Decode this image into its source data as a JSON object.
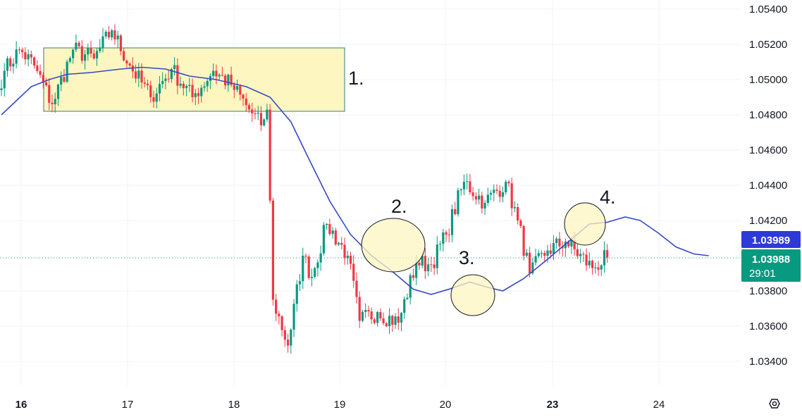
{
  "chart_data": {
    "type": "candlestick",
    "y_range": [
      1.0325,
      1.0545
    ],
    "y_ticks": [
      "1.05400",
      "1.05200",
      "1.05000",
      "1.04800",
      "1.04600",
      "1.04400",
      "1.04200",
      "1.03800",
      "1.03600",
      "1.03400"
    ],
    "x_ticks": [
      {
        "label": "16",
        "bold": true
      },
      {
        "label": "17",
        "bold": false
      },
      {
        "label": "18",
        "bold": false
      },
      {
        "label": "19",
        "bold": false
      },
      {
        "label": "20",
        "bold": false
      },
      {
        "label": "23",
        "bold": true
      },
      {
        "label": "24",
        "bold": false
      }
    ],
    "price_tags": {
      "ma_value": "1.03989",
      "last_price": "1.03988",
      "countdown": "29:01"
    },
    "annotations": [
      "1.",
      "2.",
      "3.",
      "4."
    ],
    "colors": {
      "up": "#089981",
      "down": "#f23645",
      "ma_line": "#3848c8",
      "highlight_fill": "#fdf6c0",
      "box_border": "#2e7d8a",
      "ma_tag": "#2e39d9",
      "price_tag": "#089981",
      "grid": "#f0f3fa"
    },
    "candle_segments": [
      {
        "start": 1.0496,
        "end": 1.0505,
        "n": 2
      },
      {
        "start": 1.0505,
        "end": 1.0517,
        "n": 5
      },
      {
        "start": 1.0517,
        "end": 1.0508,
        "n": 5
      },
      {
        "start": 1.0508,
        "end": 1.0486,
        "n": 6
      },
      {
        "start": 1.0486,
        "end": 1.0517,
        "n": 7
      },
      {
        "start": 1.0517,
        "end": 1.0512,
        "n": 7
      },
      {
        "start": 1.0512,
        "end": 1.0528,
        "n": 6
      },
      {
        "start": 1.0528,
        "end": 1.0508,
        "n": 6
      },
      {
        "start": 1.0508,
        "end": 1.049,
        "n": 7
      },
      {
        "start": 1.049,
        "end": 1.0506,
        "n": 7
      },
      {
        "start": 1.0506,
        "end": 1.049,
        "n": 7
      },
      {
        "start": 1.049,
        "end": 1.0505,
        "n": 7
      },
      {
        "start": 1.0505,
        "end": 1.0497,
        "n": 6
      },
      {
        "start": 1.0497,
        "end": 1.0483,
        "n": 6
      },
      {
        "start": 1.0483,
        "end": 1.0474,
        "n": 4
      },
      {
        "start": 1.0474,
        "end": 1.0483,
        "n": 2
      },
      {
        "start": 1.0483,
        "end": 1.0375,
        "n": 2
      },
      {
        "start": 1.0375,
        "end": 1.0349,
        "n": 5
      },
      {
        "start": 1.0349,
        "end": 1.04,
        "n": 5
      },
      {
        "start": 1.04,
        "end": 1.0388,
        "n": 3
      },
      {
        "start": 1.0388,
        "end": 1.0418,
        "n": 5
      },
      {
        "start": 1.0418,
        "end": 1.04,
        "n": 7
      },
      {
        "start": 1.04,
        "end": 1.0363,
        "n": 4
      },
      {
        "start": 1.0363,
        "end": 1.0368,
        "n": 6
      },
      {
        "start": 1.0368,
        "end": 1.0362,
        "n": 7
      },
      {
        "start": 1.0362,
        "end": 1.0396,
        "n": 6
      },
      {
        "start": 1.0396,
        "end": 1.0395,
        "n": 5
      },
      {
        "start": 1.0395,
        "end": 1.0412,
        "n": 5
      },
      {
        "start": 1.0412,
        "end": 1.0442,
        "n": 6
      },
      {
        "start": 1.0442,
        "end": 1.043,
        "n": 7
      },
      {
        "start": 1.043,
        "end": 1.0442,
        "n": 7
      },
      {
        "start": 1.0442,
        "end": 1.042,
        "n": 4
      },
      {
        "start": 1.042,
        "end": 1.039,
        "n": 4
      },
      {
        "start": 1.039,
        "end": 1.0403,
        "n": 6
      },
      {
        "start": 1.0403,
        "end": 1.0408,
        "n": 6
      },
      {
        "start": 1.0408,
        "end": 1.0393,
        "n": 9
      },
      {
        "start": 1.0393,
        "end": 1.0399,
        "n": 5
      }
    ],
    "ma_points": [
      [
        0,
        1.048
      ],
      [
        5,
        1.0488
      ],
      [
        10,
        1.0496
      ],
      [
        16,
        1.05
      ],
      [
        22,
        1.0503
      ],
      [
        30,
        1.0504
      ],
      [
        40,
        1.0506
      ],
      [
        47,
        1.0507
      ],
      [
        55,
        1.0506
      ],
      [
        63,
        1.0502
      ],
      [
        72,
        1.05
      ],
      [
        82,
        1.0496
      ],
      [
        90,
        1.049
      ],
      [
        97,
        1.0476
      ],
      [
        103,
        1.0455
      ],
      [
        110,
        1.0431
      ],
      [
        117,
        1.0412
      ],
      [
        124,
        1.04
      ],
      [
        131,
        1.0391
      ],
      [
        138,
        1.0381
      ],
      [
        144,
        1.0378
      ],
      [
        150,
        1.0381
      ],
      [
        157,
        1.0385
      ],
      [
        163,
        1.0382
      ],
      [
        168,
        1.038
      ],
      [
        175,
        1.0387
      ],
      [
        183,
        1.0398
      ],
      [
        190,
        1.0408
      ],
      [
        197,
        1.0418
      ],
      [
        203,
        1.0419
      ],
      [
        209,
        1.0422
      ],
      [
        214,
        1.042
      ],
      [
        220,
        1.0413
      ],
      [
        226,
        1.0405
      ],
      [
        232,
        1.0401
      ],
      [
        237,
        1.04
      ]
    ]
  }
}
